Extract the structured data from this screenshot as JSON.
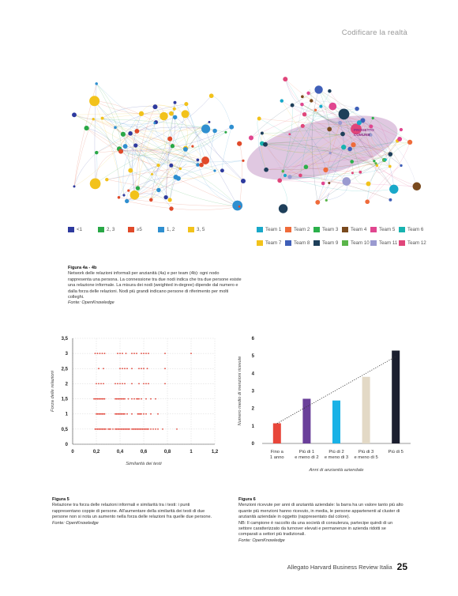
{
  "header": {
    "section_title": "Codificare la realtà"
  },
  "legend_4a": [
    {
      "label": "<1",
      "color": "#2e3a9e"
    },
    {
      "label": "2, 3",
      "color": "#29a846"
    },
    {
      "label": "≥5",
      "color": "#e04a2a"
    },
    {
      "label": "1, 2",
      "color": "#2f8fd0"
    },
    {
      "label": "3, 5",
      "color": "#f2c21b"
    }
  ],
  "legend_4b": [
    {
      "label": "Team 1",
      "color": "#19a8c9"
    },
    {
      "label": "Team 2",
      "color": "#ef6b3a"
    },
    {
      "label": "Team 3",
      "color": "#2bb04a"
    },
    {
      "label": "Team 4",
      "color": "#7a4a1e"
    },
    {
      "label": "Team 5",
      "color": "#e0468f"
    },
    {
      "label": "Team 6",
      "color": "#17b3b0"
    },
    {
      "label": "Team 7",
      "color": "#f2c21b"
    },
    {
      "label": "Team 8",
      "color": "#3f5fb8"
    },
    {
      "label": "Team 9",
      "color": "#1e3f5a"
    },
    {
      "label": "Team 10",
      "color": "#5ab54a"
    },
    {
      "label": "Team 11",
      "color": "#9a9ad0"
    },
    {
      "label": "Team 12",
      "color": "#e0467a"
    }
  ],
  "network_4b_annotation": "PROGETTO\nCOMUNE",
  "figure4": {
    "title": "Figura 4a - 4b",
    "body": "Network delle relazioni informali per anzianità (4a) e per team (4b): ogni nodo rappresenta una persona. La connessione tra due nodi indica che tra due persone esiste una relazione informale. La misura dei nodi (weighted in-degree) dipende dal numero e dalla forza delle relazioni. Nodi più grandi indicano persone di riferimento per molti colleghi.",
    "source": "Fonte: OpenKnowledge"
  },
  "figure5": {
    "title": "Figura 5",
    "body": "Relazione tra forza delle relazioni informali e similarità tra i testi: i punti rappresentano coppie di persone. All'aumentare della similarità dei testi di due persone non si nota un aumento nella forza delle relazioni fra quelle due persone.",
    "source": "Fonte: OpenKnowledge"
  },
  "figure6": {
    "title": "Figura 6",
    "body": "Menzioni ricevute per anni di anzianità aziendale: la barra ha un valore tanto più alto quante più menzioni hanno ricevuto, in media, le persone appartenenti al cluster di anzianità aziendale in oggetto (rappresentato dal colore).",
    "note": "NB: Il campione è raccolto da una società di consulenza, partecipe quindi di un settore caratterizzato da turnover elevati e permanenze in azienda ridotti se comparati a settori più tradizionali.",
    "source": "Fonte: OpenKnowledge"
  },
  "chart_data": [
    {
      "type": "scatter",
      "xlabel": "Similarità dei testi",
      "ylabel": "Forza delle relazioni",
      "xlim": [
        0,
        1.2
      ],
      "ylim": [
        0,
        3.5
      ],
      "x_ticks": [
        "0",
        "0,2",
        "0,4",
        "0,6",
        "0,8",
        "1",
        "1,2"
      ],
      "y_ticks": [
        "0",
        "0,5",
        "1",
        "1,5",
        "2",
        "2,5",
        "3",
        "3,5"
      ],
      "grid": true,
      "series": [
        {
          "color": "#e0463a",
          "points": [
            [
              0.19,
              0.5
            ],
            [
              0.2,
              0.5
            ],
            [
              0.21,
              0.5
            ],
            [
              0.22,
              0.5
            ],
            [
              0.23,
              0.5
            ],
            [
              0.24,
              0.5
            ],
            [
              0.25,
              0.5
            ],
            [
              0.26,
              0.5
            ],
            [
              0.27,
              0.5
            ],
            [
              0.28,
              0.5
            ],
            [
              0.3,
              0.5
            ],
            [
              0.31,
              0.5
            ],
            [
              0.32,
              0.5
            ],
            [
              0.34,
              0.5
            ],
            [
              0.36,
              0.5
            ],
            [
              0.37,
              0.5
            ],
            [
              0.38,
              0.5
            ],
            [
              0.39,
              0.5
            ],
            [
              0.4,
              0.5
            ],
            [
              0.41,
              0.5
            ],
            [
              0.42,
              0.5
            ],
            [
              0.43,
              0.5
            ],
            [
              0.44,
              0.5
            ],
            [
              0.45,
              0.5
            ],
            [
              0.46,
              0.5
            ],
            [
              0.47,
              0.5
            ],
            [
              0.48,
              0.5
            ],
            [
              0.5,
              0.5
            ],
            [
              0.51,
              0.5
            ],
            [
              0.52,
              0.5
            ],
            [
              0.53,
              0.5
            ],
            [
              0.54,
              0.5
            ],
            [
              0.55,
              0.5
            ],
            [
              0.56,
              0.5
            ],
            [
              0.57,
              0.5
            ],
            [
              0.58,
              0.5
            ],
            [
              0.59,
              0.5
            ],
            [
              0.6,
              0.5
            ],
            [
              0.61,
              0.5
            ],
            [
              0.62,
              0.5
            ],
            [
              0.63,
              0.5
            ],
            [
              0.64,
              0.5
            ],
            [
              0.66,
              0.5
            ],
            [
              0.68,
              0.5
            ],
            [
              0.7,
              0.5
            ],
            [
              0.72,
              0.5
            ],
            [
              0.76,
              0.5
            ],
            [
              0.88,
              0.5
            ],
            [
              0.2,
              1
            ],
            [
              0.21,
              1
            ],
            [
              0.22,
              1
            ],
            [
              0.23,
              1
            ],
            [
              0.24,
              1
            ],
            [
              0.25,
              1
            ],
            [
              0.26,
              1
            ],
            [
              0.27,
              1
            ],
            [
              0.36,
              1
            ],
            [
              0.37,
              1
            ],
            [
              0.38,
              1
            ],
            [
              0.39,
              1
            ],
            [
              0.4,
              1
            ],
            [
              0.41,
              1
            ],
            [
              0.42,
              1
            ],
            [
              0.43,
              1
            ],
            [
              0.44,
              1
            ],
            [
              0.46,
              1
            ],
            [
              0.5,
              1
            ],
            [
              0.55,
              1
            ],
            [
              0.56,
              1
            ],
            [
              0.57,
              1
            ],
            [
              0.58,
              1
            ],
            [
              0.6,
              1
            ],
            [
              0.62,
              1
            ],
            [
              0.66,
              1
            ],
            [
              0.72,
              1
            ],
            [
              0.18,
              1.5
            ],
            [
              0.19,
              1.5
            ],
            [
              0.2,
              1.5
            ],
            [
              0.21,
              1.5
            ],
            [
              0.22,
              1.5
            ],
            [
              0.23,
              1.5
            ],
            [
              0.24,
              1.5
            ],
            [
              0.25,
              1.5
            ],
            [
              0.26,
              1.5
            ],
            [
              0.27,
              1.5
            ],
            [
              0.36,
              1.5
            ],
            [
              0.37,
              1.5
            ],
            [
              0.38,
              1.5
            ],
            [
              0.39,
              1.5
            ],
            [
              0.4,
              1.5
            ],
            [
              0.41,
              1.5
            ],
            [
              0.42,
              1.5
            ],
            [
              0.43,
              1.5
            ],
            [
              0.44,
              1.5
            ],
            [
              0.47,
              1.5
            ],
            [
              0.5,
              1.5
            ],
            [
              0.52,
              1.5
            ],
            [
              0.54,
              1.5
            ],
            [
              0.55,
              1.5
            ],
            [
              0.56,
              1.5
            ],
            [
              0.58,
              1.5
            ],
            [
              0.62,
              1.5
            ],
            [
              0.66,
              1.5
            ],
            [
              0.7,
              1.5
            ],
            [
              0.2,
              2
            ],
            [
              0.22,
              2
            ],
            [
              0.24,
              2
            ],
            [
              0.26,
              2
            ],
            [
              0.36,
              2
            ],
            [
              0.38,
              2
            ],
            [
              0.4,
              2
            ],
            [
              0.42,
              2
            ],
            [
              0.44,
              2
            ],
            [
              0.5,
              2
            ],
            [
              0.56,
              2
            ],
            [
              0.6,
              2
            ],
            [
              0.62,
              2
            ],
            [
              0.64,
              2
            ],
            [
              0.78,
              2
            ],
            [
              0.22,
              2.5
            ],
            [
              0.26,
              2.5
            ],
            [
              0.4,
              2.5
            ],
            [
              0.42,
              2.5
            ],
            [
              0.44,
              2.5
            ],
            [
              0.46,
              2.5
            ],
            [
              0.5,
              2.5
            ],
            [
              0.56,
              2.5
            ],
            [
              0.58,
              2.5
            ],
            [
              0.6,
              2.5
            ],
            [
              0.63,
              2.5
            ],
            [
              0.78,
              2.5
            ],
            [
              0.19,
              3
            ],
            [
              0.21,
              3
            ],
            [
              0.23,
              3
            ],
            [
              0.25,
              3
            ],
            [
              0.27,
              3
            ],
            [
              0.38,
              3
            ],
            [
              0.4,
              3
            ],
            [
              0.42,
              3
            ],
            [
              0.45,
              3
            ],
            [
              0.5,
              3
            ],
            [
              0.52,
              3
            ],
            [
              0.54,
              3
            ],
            [
              0.58,
              3
            ],
            [
              0.6,
              3
            ],
            [
              0.62,
              3
            ],
            [
              0.64,
              3
            ],
            [
              0.78,
              3
            ],
            [
              1.0,
              3
            ]
          ]
        }
      ]
    },
    {
      "type": "bar",
      "categories": [
        "Fino a\n1 anno",
        "Più di 1\ne meno di 2",
        "Più di 2\ne meno di 3",
        "Più di 3\ne meno di 5",
        "Più di 5"
      ],
      "values": [
        1.15,
        2.55,
        2.45,
        3.8,
        5.3
      ],
      "colors": [
        "#e8463a",
        "#6a3f9a",
        "#19b2e6",
        "#e3d9c6",
        "#1b1f2f"
      ],
      "xlabel": "Anni di anzianità aziendale",
      "ylabel": "Numero medio di menzioni ricevute",
      "ylim": [
        0,
        6
      ],
      "y_ticks": [
        "0",
        "1",
        "2",
        "3",
        "4",
        "5",
        "6"
      ],
      "trendline": "linear, dotted",
      "grid": false
    }
  ],
  "footer": {
    "publication": "Allegato Harvard Business Review Italia",
    "page": "25"
  }
}
